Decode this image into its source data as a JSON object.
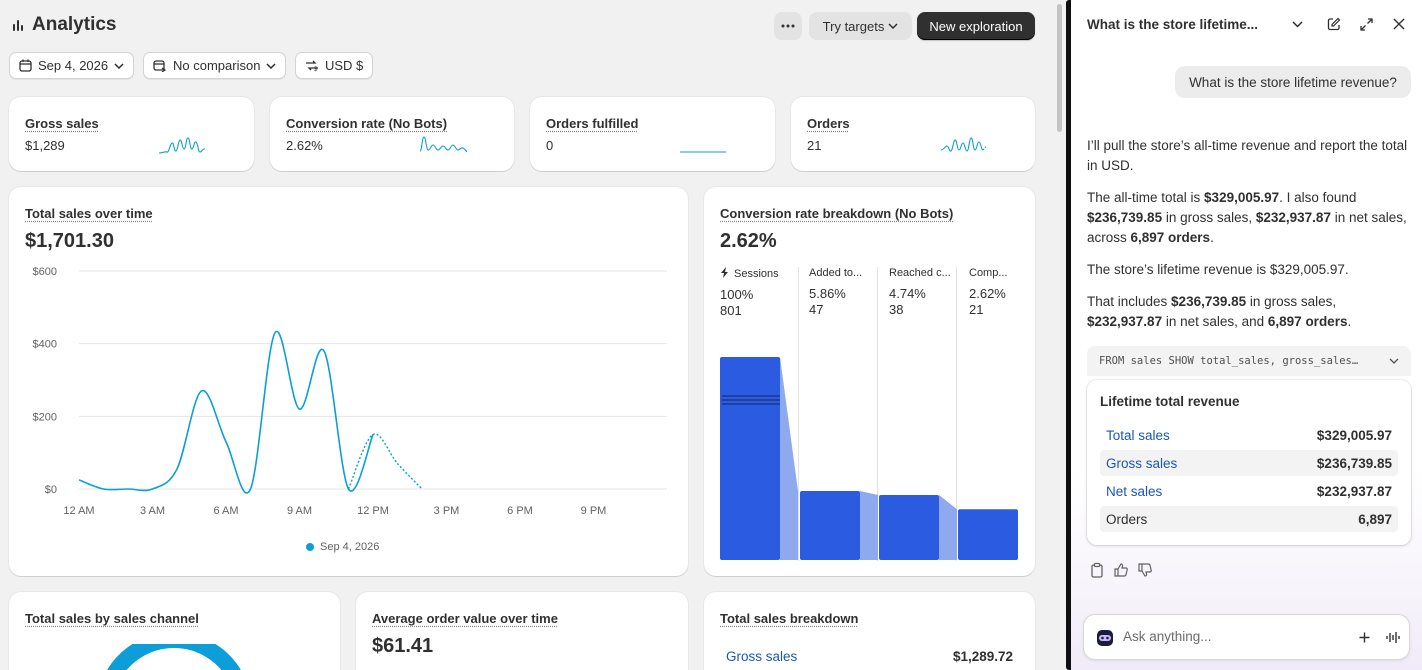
{
  "header": {
    "title": "Analytics",
    "try_targets_label": "Try targets",
    "new_exploration_label": "New exploration"
  },
  "filters": {
    "date": "Sep 4, 2026",
    "comparison": "No comparison",
    "currency": "USD $"
  },
  "kpis": [
    {
      "label": "Gross sales",
      "value": "$1,289"
    },
    {
      "label": "Conversion rate (No Bots)",
      "value": "2.62%"
    },
    {
      "label": "Orders fulfilled",
      "value": "0"
    },
    {
      "label": "Orders",
      "value": "21"
    }
  ],
  "sales_chart": {
    "title": "Total sales over time",
    "value": "$1,701.30",
    "legend": "Sep 4, 2026"
  },
  "chart_data": {
    "type": "line",
    "x_ticks": [
      "12 AM",
      "3 AM",
      "6 AM",
      "9 AM",
      "12 PM",
      "3 PM",
      "6 PM",
      "9 PM"
    ],
    "y_ticks": [
      "$0",
      "$200",
      "$400",
      "$600"
    ],
    "ylim": [
      0,
      600
    ],
    "series": [
      {
        "name": "Sep 4, 2026",
        "x_hours": [
          0,
          1,
          2,
          3,
          4,
          5,
          6,
          7,
          8,
          9,
          10,
          11,
          12,
          13,
          14
        ],
        "values": [
          25,
          0,
          0,
          0,
          55,
          270,
          130,
          0,
          430,
          220,
          380,
          0,
          150,
          70,
          0
        ]
      }
    ],
    "grid": true
  },
  "conversion": {
    "title": "Conversion rate breakdown (No Bots)",
    "value": "2.62%",
    "steps": [
      {
        "label": "Sessions",
        "pct": "100%",
        "count": "801",
        "fraction": 1.0
      },
      {
        "label": "Added to...",
        "pct": "5.86%",
        "count": "47",
        "fraction": 0.34
      },
      {
        "label": "Reached c...",
        "pct": "4.74%",
        "count": "38",
        "fraction": 0.32
      },
      {
        "label": "Comp...",
        "pct": "2.62%",
        "count": "21",
        "fraction": 0.25
      }
    ]
  },
  "bottom_cards": {
    "channel_title": "Total sales by sales channel",
    "aov_title": "Average order value over time",
    "aov_value": "$61.41",
    "breakdown_title": "Total sales breakdown",
    "breakdown_row_label": "Gross sales",
    "breakdown_row_value": "$1,289.72"
  },
  "chat": {
    "title": "What is the store lifetime...",
    "user_message": "What is the store lifetime revenue?",
    "p1": "I’ll pull the store’s all-time revenue and report the total in USD.",
    "p2_a": "The all-time total is ",
    "p2_b": "$329,005.97",
    "p2_c": ". I also found ",
    "p2_d": "$236,739.85",
    "p2_e": " in gross sales, ",
    "p2_f": "$232,937.87",
    "p2_g": " in net sales, across ",
    "p2_h": "6,897 orders",
    "p2_i": ".",
    "p3": "The store’s lifetime revenue is $329,005.97.",
    "p4_a": "That includes ",
    "p4_b": "$236,739.85",
    "p4_c": " in gross sales, ",
    "p4_d": "$232,937.87",
    "p4_e": " in net sales, and ",
    "p4_f": "6,897 orders",
    "p4_g": ".",
    "query": "FROM sales SHOW total_sales, gross_sales…",
    "result_title": "Lifetime total revenue",
    "rows": [
      {
        "label": "Total sales",
        "value": "$329,005.97"
      },
      {
        "label": "Gross sales",
        "value": "$236,739.85"
      },
      {
        "label": "Net sales",
        "value": "$232,937.87"
      },
      {
        "label": "Orders",
        "value": "6,897"
      }
    ],
    "input_placeholder": "Ask anything..."
  },
  "colors": {
    "accent_line": "#0c9ed9",
    "funnel_blue": "#2b5be0",
    "link_blue": "#1a56b8",
    "primary_button": "#303030"
  }
}
